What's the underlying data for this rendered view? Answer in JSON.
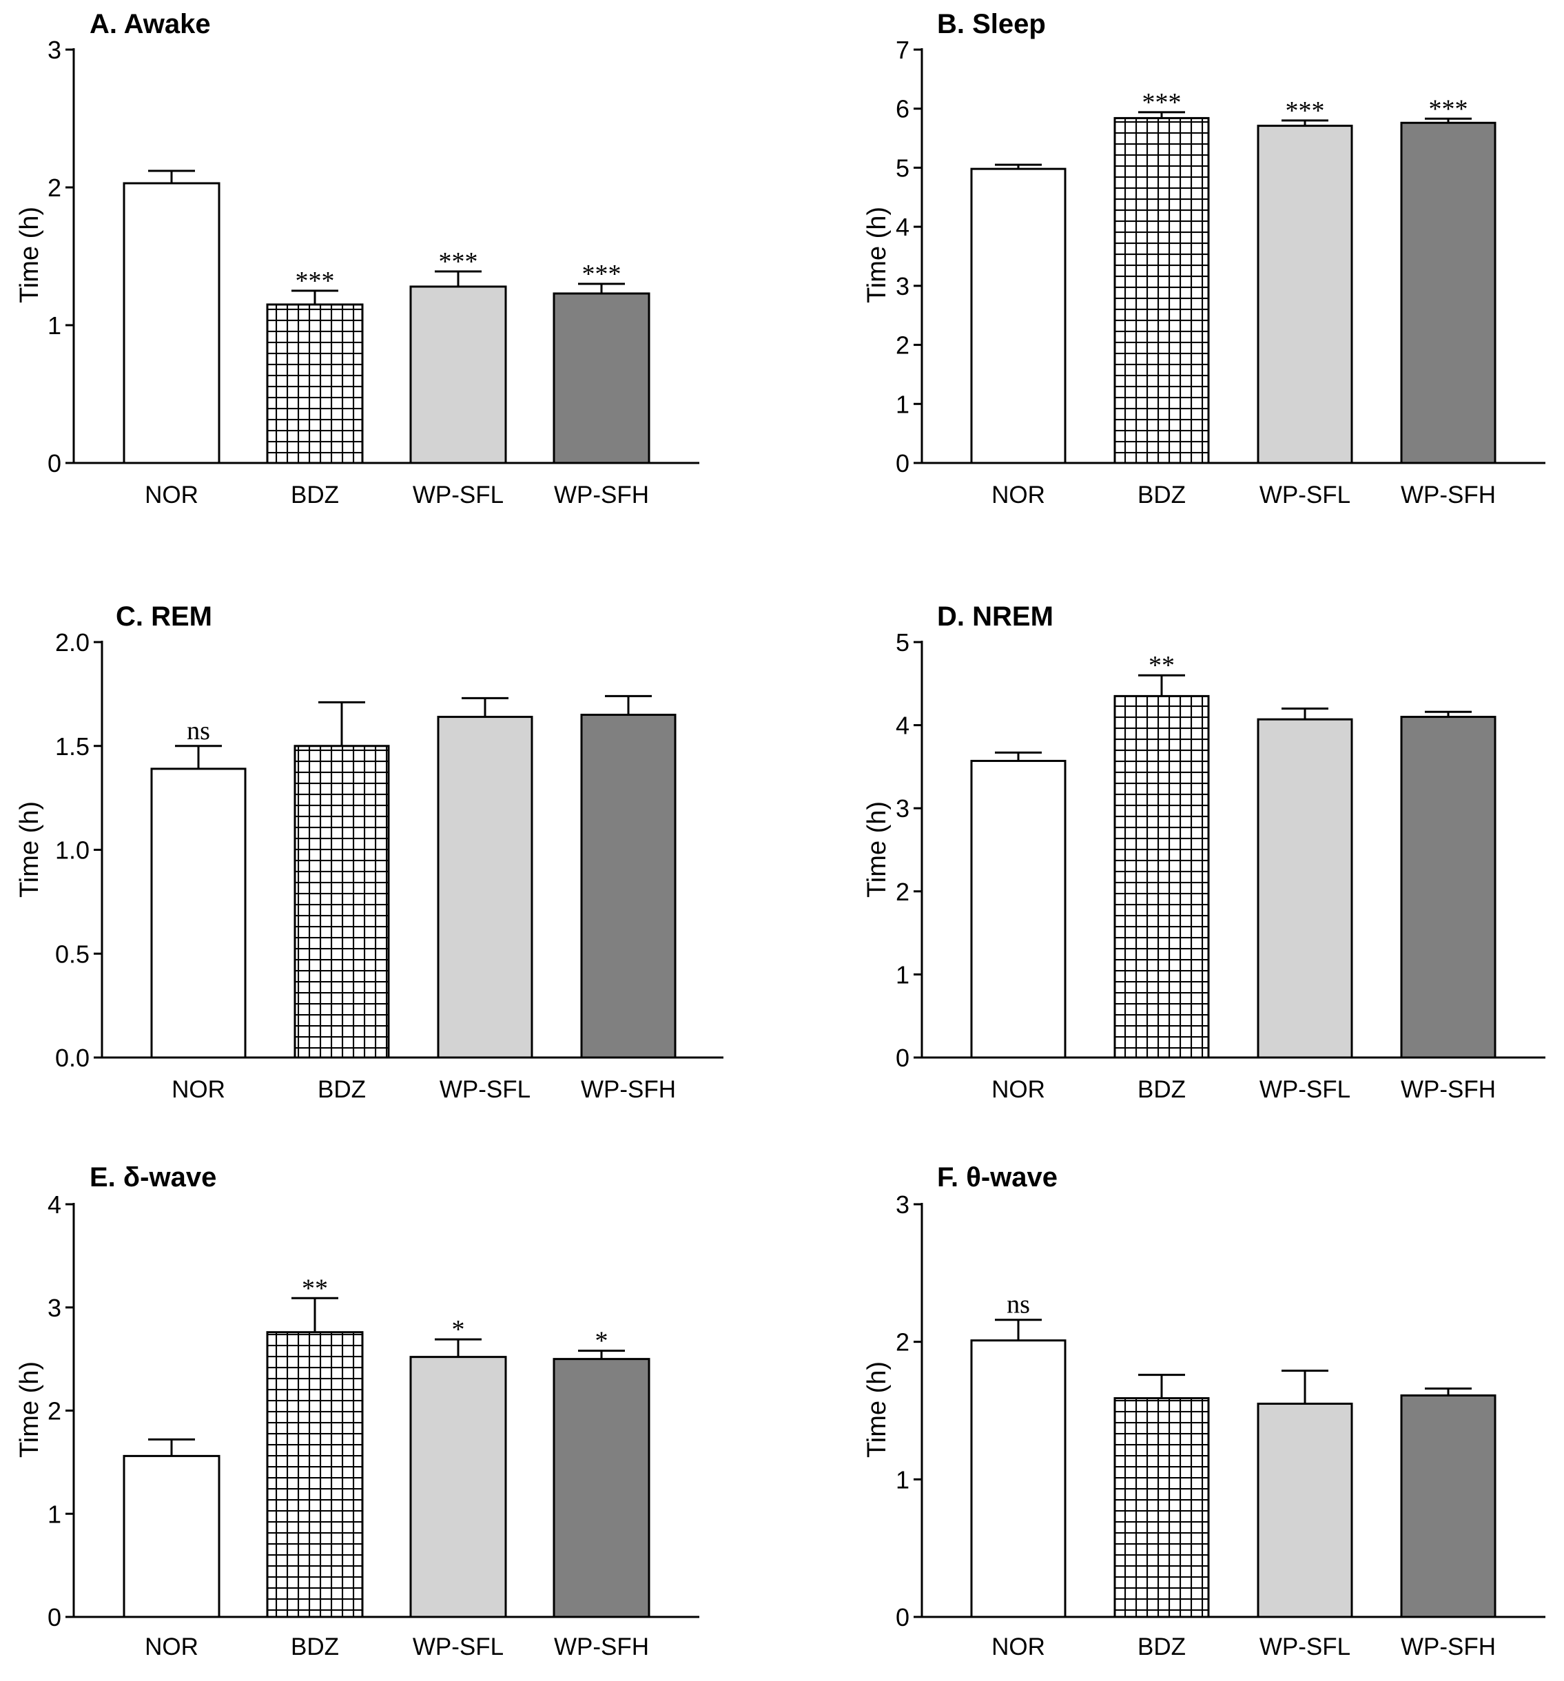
{
  "chart_data": [
    {
      "type": "bar",
      "title": "A. Awake",
      "ylabel": "Time (h)",
      "ylim": [
        0,
        3
      ],
      "yticks": [
        "0",
        "1",
        "2",
        "3"
      ],
      "categories": [
        "NOR",
        "BDZ",
        "WP-SFL",
        "WP-SFH"
      ],
      "values": [
        2.03,
        1.15,
        1.28,
        1.23
      ],
      "errors": [
        0.09,
        0.1,
        0.11,
        0.07
      ],
      "significance": [
        "",
        "***",
        "***",
        "***"
      ]
    },
    {
      "type": "bar",
      "title": "B. Sleep",
      "ylabel": "Time (h)",
      "ylim": [
        0,
        7
      ],
      "yticks": [
        "0",
        "1",
        "2",
        "3",
        "4",
        "5",
        "6",
        "7"
      ],
      "categories": [
        "NOR",
        "BDZ",
        "WP-SFL",
        "WP-SFH"
      ],
      "values": [
        4.98,
        5.84,
        5.71,
        5.76
      ],
      "errors": [
        0.07,
        0.1,
        0.09,
        0.07
      ],
      "significance": [
        "",
        "***",
        "***",
        "***"
      ]
    },
    {
      "type": "bar",
      "title": "C. REM",
      "ylabel": "Time (h)",
      "ylim": [
        0,
        2
      ],
      "yticks": [
        "0.0",
        "0.5",
        "1.0",
        "1.5",
        "2.0"
      ],
      "categories": [
        "NOR",
        "BDZ",
        "WP-SFL",
        "WP-SFH"
      ],
      "values": [
        1.39,
        1.5,
        1.64,
        1.65
      ],
      "errors": [
        0.11,
        0.21,
        0.09,
        0.09
      ],
      "significance": [
        "ns",
        "",
        "",
        ""
      ]
    },
    {
      "type": "bar",
      "title": "D.  NREM",
      "ylabel": "Time (h)",
      "ylim": [
        0,
        5
      ],
      "yticks": [
        "0",
        "1",
        "2",
        "3",
        "4",
        "5"
      ],
      "categories": [
        "NOR",
        "BDZ",
        "WP-SFL",
        "WP-SFH"
      ],
      "values": [
        3.57,
        4.35,
        4.07,
        4.1
      ],
      "errors": [
        0.1,
        0.25,
        0.13,
        0.06
      ],
      "significance": [
        "",
        "**",
        "",
        ""
      ]
    },
    {
      "type": "bar",
      "title": "E. δ-wave",
      "ylabel": "Time (h)",
      "ylim": [
        0,
        4
      ],
      "yticks": [
        "0",
        "1",
        "2",
        "3",
        "4"
      ],
      "categories": [
        "NOR",
        "BDZ",
        "WP-SFL",
        "WP-SFH"
      ],
      "values": [
        1.56,
        2.76,
        2.52,
        2.5
      ],
      "errors": [
        0.16,
        0.33,
        0.17,
        0.08
      ],
      "significance": [
        "",
        "**",
        "*",
        "*"
      ]
    },
    {
      "type": "bar",
      "title": "F. θ-wave",
      "ylabel": "Time (h)",
      "ylim": [
        0,
        3
      ],
      "yticks": [
        "0",
        "1",
        "2",
        "3"
      ],
      "categories": [
        "NOR",
        "BDZ",
        "WP-SFL",
        "WP-SFH"
      ],
      "values": [
        2.01,
        1.59,
        1.55,
        1.61
      ],
      "errors": [
        0.15,
        0.17,
        0.24,
        0.05
      ],
      "significance": [
        "ns",
        "",
        "",
        ""
      ]
    }
  ],
  "bar_styles": [
    {
      "fill": "#ffffff",
      "pattern": "none"
    },
    {
      "fill": "#ffffff",
      "pattern": "grid"
    },
    {
      "fill": "#d3d3d3",
      "pattern": "none"
    },
    {
      "fill": "#808080",
      "pattern": "none"
    }
  ]
}
